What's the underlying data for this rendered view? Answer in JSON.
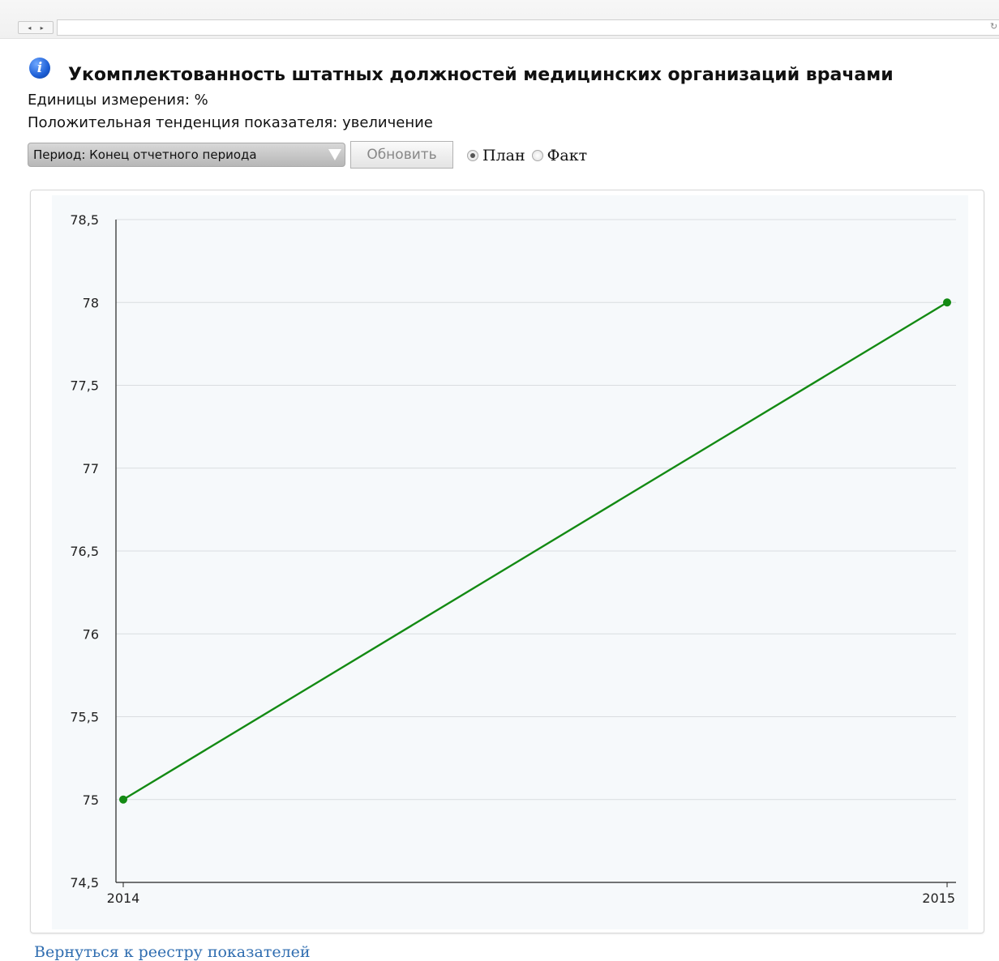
{
  "browser": {
    "nav_back": "◂",
    "nav_forward": "▸",
    "reload_icon": "↻"
  },
  "header": {
    "info_icon": "i",
    "title": "Укомплектованность штатных должностей медицинских организаций врачами",
    "units_line": "Единицы измерения: %",
    "trend_line": "Положительная тенденция показателя: увеличение"
  },
  "controls": {
    "period_select": "Период: Конец отчетного периода",
    "refresh_button": "Обновить",
    "radio_plan": "План",
    "radio_fact": "Факт",
    "selected": "План"
  },
  "chart_data": {
    "type": "line",
    "x": [
      "2014",
      "2015"
    ],
    "series": [
      {
        "values": [
          75,
          78
        ],
        "color": "#138a13"
      }
    ],
    "ylim": [
      74.5,
      78.5
    ],
    "yticks": [
      "78,5",
      "78",
      "77,5",
      "77",
      "76,5",
      "76",
      "75,5",
      "75",
      "74,5"
    ],
    "ytick_values": [
      78.5,
      78,
      77.5,
      77,
      76.5,
      76,
      75.5,
      75,
      74.5
    ],
    "grid": true,
    "plot_background": "#f6f9fb"
  },
  "footer": {
    "back_link": "Вернуться к реестру показателей"
  }
}
